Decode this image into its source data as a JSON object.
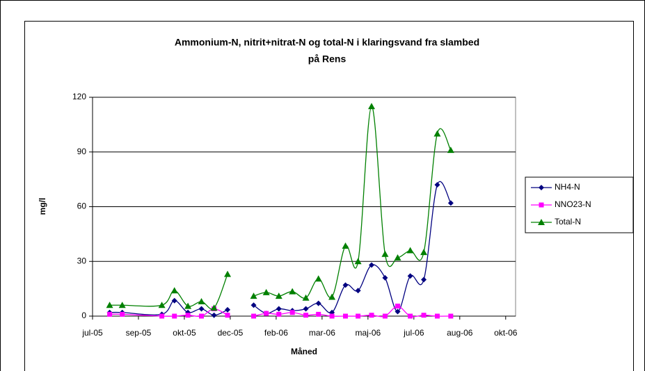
{
  "chart_data": {
    "type": "line",
    "title": [
      "Ammonium-N, nitrit+nitrat-N og total-N i klaringsvand fra slambed",
      "på Rens"
    ],
    "x_label": "Måned",
    "y_label": "mg/l",
    "x": [
      19,
      33,
      77,
      91,
      106,
      121,
      135,
      150,
      null,
      179,
      193,
      207,
      222,
      237,
      251,
      266,
      281,
      295,
      310,
      325,
      339,
      353,
      368,
      383,
      398
    ],
    "series": [
      {
        "name": "NH4-N",
        "color": "#000080",
        "marker": "diamond",
        "values": [
          2,
          2,
          1,
          8.5,
          2,
          4,
          0.5,
          3.5,
          null,
          6,
          1.5,
          4,
          3,
          4,
          7,
          2,
          17,
          14,
          28,
          21,
          2.5,
          22,
          20,
          72,
          62
        ]
      },
      {
        "name": "NNO23-N",
        "color": "#ff00ff",
        "marker": "square",
        "values": [
          1,
          1,
          0,
          0,
          0.5,
          0,
          4,
          0.5,
          null,
          0,
          1.5,
          1,
          2,
          0.5,
          1,
          0,
          0,
          0,
          0.5,
          0,
          5.5,
          0,
          0.5,
          0,
          0
        ]
      },
      {
        "name": "Total-N",
        "color": "#008000",
        "marker": "triangle",
        "values": [
          6,
          6,
          6,
          14,
          5.5,
          8,
          4.5,
          23,
          null,
          11,
          13,
          11,
          13.5,
          10,
          20.5,
          10.5,
          38.5,
          30,
          115,
          34,
          32,
          36,
          35,
          100,
          91
        ]
      }
    ],
    "xlim": [
      0,
      470
    ],
    "xticks": [
      {
        "value": 0,
        "label": "jul-05"
      },
      {
        "value": 51,
        "label": "sep-05"
      },
      {
        "value": 102,
        "label": "okt-05"
      },
      {
        "value": 153,
        "label": "dec-05"
      },
      {
        "value": 204,
        "label": "feb-06"
      },
      {
        "value": 255,
        "label": "mar-06"
      },
      {
        "value": 306,
        "label": "maj-06"
      },
      {
        "value": 357,
        "label": "jul-06"
      },
      {
        "value": 408,
        "label": "aug-06"
      },
      {
        "value": 459,
        "label": "okt-06"
      }
    ],
    "ylim": [
      0,
      120
    ],
    "yticks": [
      0,
      30,
      60,
      90,
      120
    ],
    "grid": true,
    "legend": "right"
  }
}
